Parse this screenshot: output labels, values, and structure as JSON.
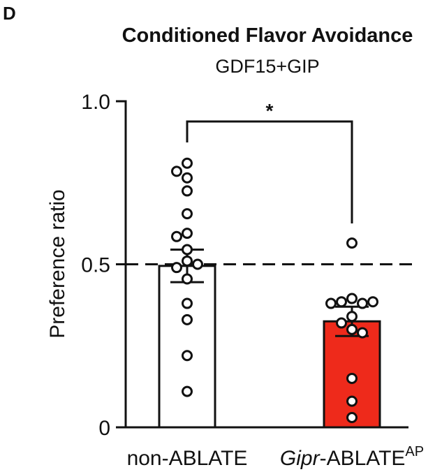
{
  "panel_label": "D",
  "chart_data": {
    "type": "bar",
    "title": "Conditioned Flavor Avoidance",
    "subtitle": "GDF15+GIP",
    "ylabel": "Preference ratio",
    "xlabel": "",
    "ylim": [
      0,
      1.0
    ],
    "yticks": [
      0,
      0.5,
      1.0
    ],
    "ytick_labels": [
      "0",
      "0.5",
      "1.0"
    ],
    "reference_line": 0.5,
    "categories": [
      {
        "label": "non-ABLATE",
        "italic_part": "",
        "rest": "non-ABLATE",
        "superscript": ""
      },
      {
        "label": "Gipr-ABLATE AP",
        "italic_part": "Gipr",
        "rest": "-ABLATE",
        "superscript": "AP"
      }
    ],
    "values": [
      0.495,
      0.325
    ],
    "sem": [
      0.05,
      0.045
    ],
    "bar_colors": [
      "#ffffff",
      "#ee2a1b"
    ],
    "points": [
      [
        0.81,
        0.785,
        0.765,
        0.725,
        0.655,
        0.595,
        0.585,
        0.545,
        0.51,
        0.49,
        0.5,
        0.455,
        0.38,
        0.33,
        0.22,
        0.11
      ],
      [
        0.565,
        0.395,
        0.385,
        0.38,
        0.38,
        0.385,
        0.34,
        0.32,
        0.3,
        0.29,
        0.15,
        0.08,
        0.03
      ]
    ],
    "significance": {
      "label": "*",
      "between": [
        0,
        1
      ]
    },
    "grid": false,
    "legend": "none"
  }
}
